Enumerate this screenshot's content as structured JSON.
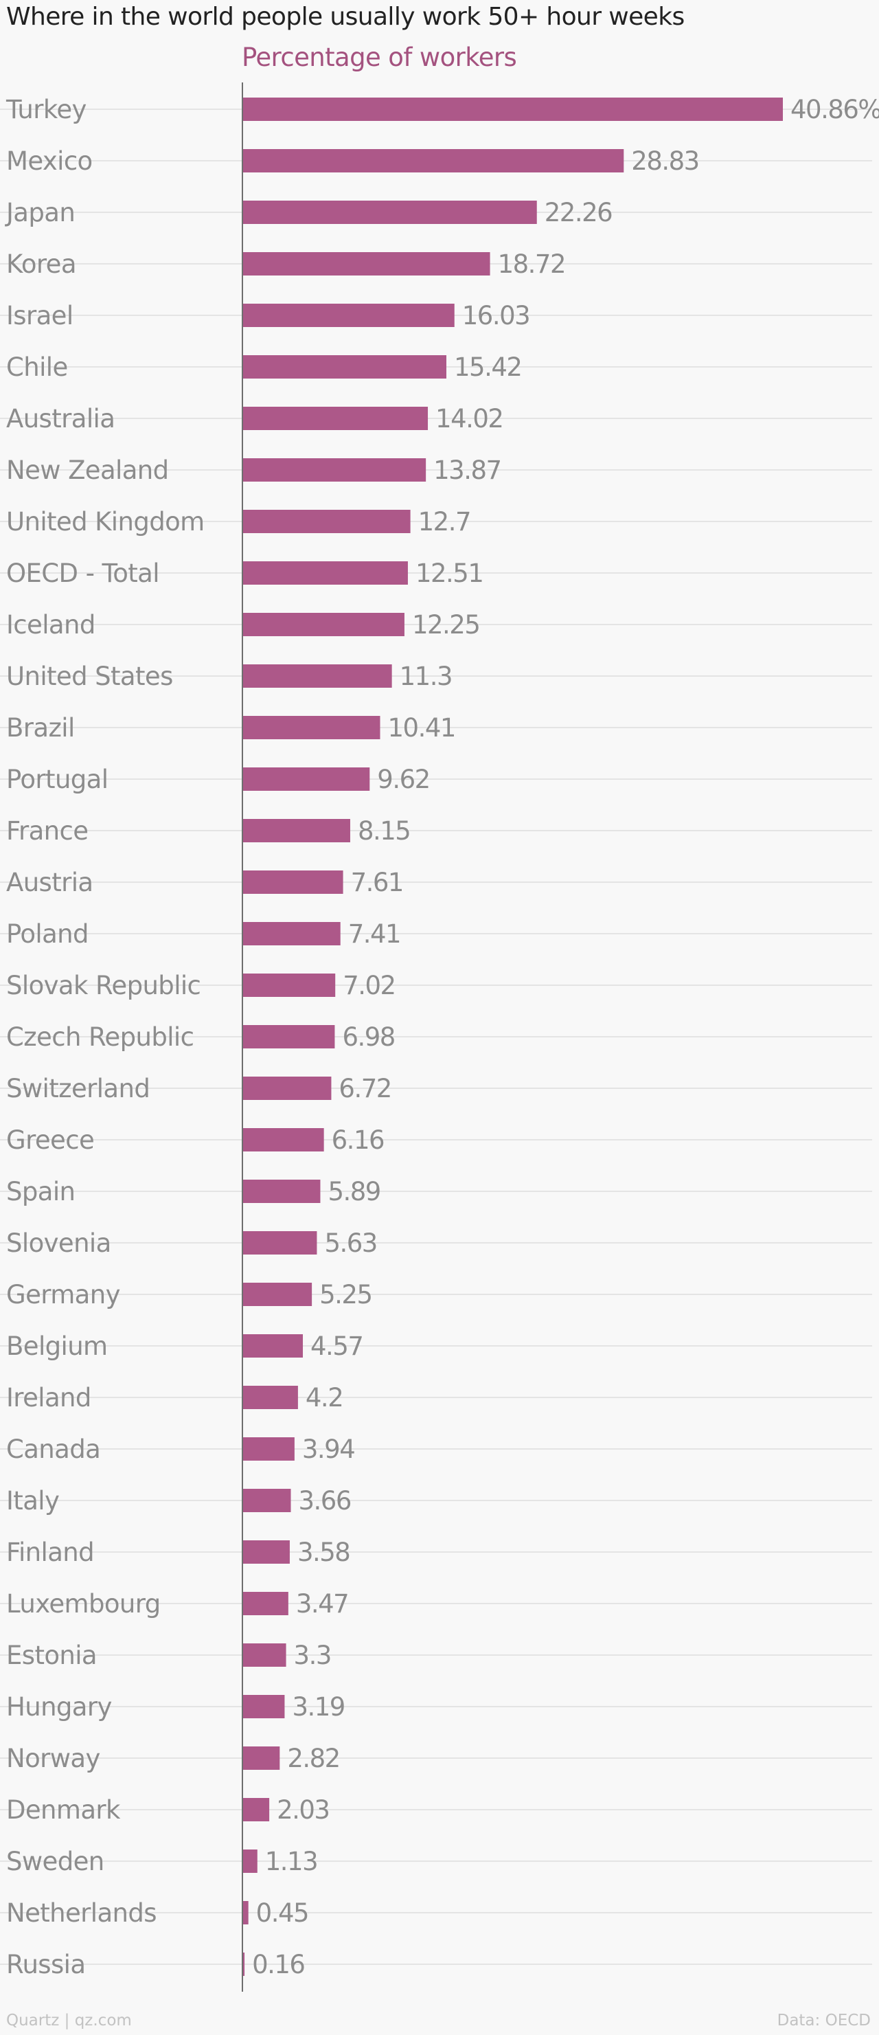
{
  "colors": {
    "bar": "#ad5889",
    "subtitle": "#a4527f",
    "label": "#8c8c8c",
    "grid": "#e4e4e4",
    "axis": "#6e6e6e",
    "background": "#f8f8f8"
  },
  "footer": {
    "source_left": "Quartz | qz.com",
    "source_right": "Data: OECD"
  },
  "chart_data": {
    "type": "bar",
    "orientation": "horizontal",
    "title": "Where in the world people usually work 50+ hour weeks",
    "subtitle": "Percentage of workers",
    "value_suffix_first": "%",
    "grid": true,
    "categories": [
      "Turkey",
      "Mexico",
      "Japan",
      "Korea",
      "Israel",
      "Chile",
      "Australia",
      "New Zealand",
      "United Kingdom",
      "OECD - Total",
      "Iceland",
      "United States",
      "Brazil",
      "Portugal",
      "France",
      "Austria",
      "Poland",
      "Slovak Republic",
      "Czech Republic",
      "Switzerland",
      "Greece",
      "Spain",
      "Slovenia",
      "Germany",
      "Belgium",
      "Ireland",
      "Canada",
      "Italy",
      "Finland",
      "Luxembourg",
      "Estonia",
      "Hungary",
      "Norway",
      "Denmark",
      "Sweden",
      "Netherlands",
      "Russia"
    ],
    "values": [
      40.86,
      28.83,
      22.26,
      18.72,
      16.03,
      15.42,
      14.02,
      13.87,
      12.7,
      12.51,
      12.25,
      11.3,
      10.41,
      9.62,
      8.15,
      7.61,
      7.41,
      7.02,
      6.98,
      6.72,
      6.16,
      5.89,
      5.63,
      5.25,
      4.57,
      4.2,
      3.94,
      3.66,
      3.58,
      3.47,
      3.3,
      3.19,
      2.82,
      2.03,
      1.13,
      0.45,
      0.16
    ],
    "value_labels": [
      "40.86%",
      "28.83",
      "22.26",
      "18.72",
      "16.03",
      "15.42",
      "14.02",
      "13.87",
      "12.7",
      "12.51",
      "12.25",
      "11.3",
      "10.41",
      "9.62",
      "8.15",
      "7.61",
      "7.41",
      "7.02",
      "6.98",
      "6.72",
      "6.16",
      "5.89",
      "5.63",
      "5.25",
      "4.57",
      "4.2",
      "3.94",
      "3.66",
      "3.58",
      "3.47",
      "3.3",
      "3.19",
      "2.82",
      "2.03",
      "1.13",
      "0.45",
      "0.16"
    ],
    "xlim": [
      0,
      40.86
    ]
  }
}
